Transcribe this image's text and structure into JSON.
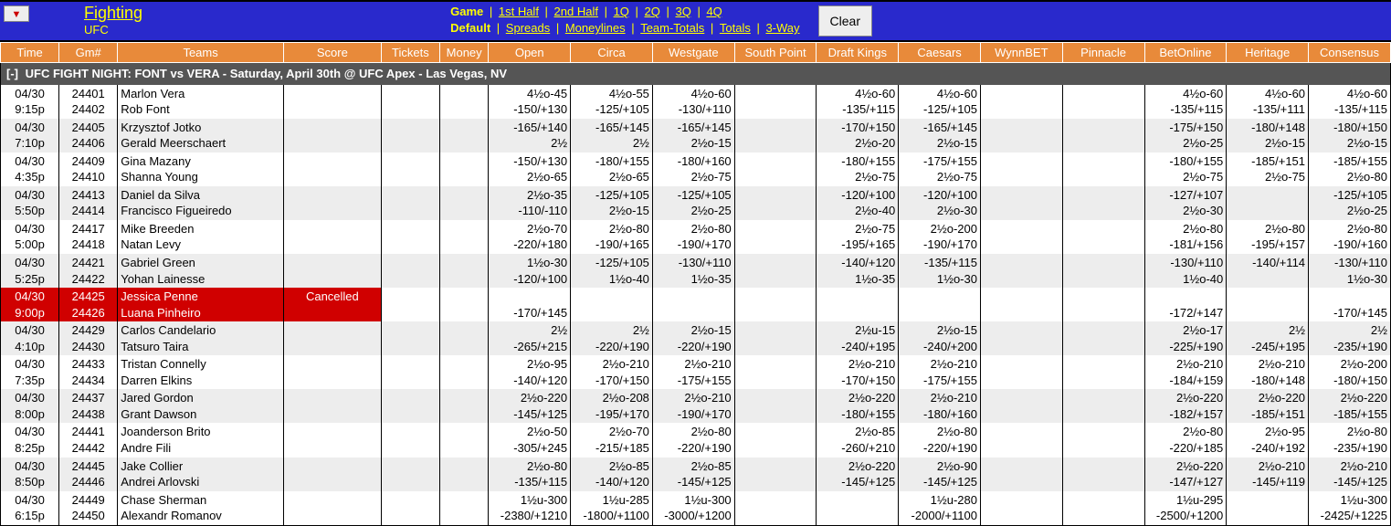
{
  "nav": {
    "category": "Fighting",
    "subcategory": "UFC",
    "game_label": "Game",
    "game_links": [
      "1st Half",
      "2nd Half",
      "1Q",
      "2Q",
      "3Q",
      "4Q"
    ],
    "default_label": "Default",
    "default_links": [
      "Spreads",
      "Moneylines",
      "Team-Totals",
      "Totals",
      "3-Way"
    ],
    "clear": "Clear",
    "dropdown_glyph": "▼"
  },
  "columns": [
    "Time",
    "Gm#",
    "Teams",
    "Score",
    "Tickets",
    "Money",
    "Open",
    "Circa",
    "Westgate",
    "South Point",
    "Draft Kings",
    "Caesars",
    "WynnBET",
    "Pinnacle",
    "BetOnline",
    "Heritage",
    "Consensus"
  ],
  "event": {
    "toggle": "[-]",
    "title": "UFC FIGHT NIGHT: FONT vs VERA - Saturday, April 30th @ UFC Apex - Las Vegas, NV"
  },
  "rows": [
    {
      "time": [
        "04/30",
        "9:15p"
      ],
      "gm": [
        "24401",
        "24402"
      ],
      "teams": [
        "Marlon Vera",
        "Rob Font"
      ],
      "score": "",
      "cancelled": false,
      "odds": {
        "Open": [
          "4½o-45",
          "-150/+130"
        ],
        "Circa": [
          "4½o-55",
          "-125/+105"
        ],
        "Westgate": [
          "4½o-60",
          "-130/+110"
        ],
        "South Point": [
          "",
          ""
        ],
        "Draft Kings": [
          "4½o-60",
          "-135/+115"
        ],
        "Caesars": [
          "4½o-60",
          "-125/+105"
        ],
        "WynnBET": [
          "",
          ""
        ],
        "Pinnacle": [
          "",
          ""
        ],
        "BetOnline": [
          "4½o-60",
          "-135/+115"
        ],
        "Heritage": [
          "4½o-60",
          "-135/+111"
        ],
        "Consensus": [
          "4½o-60",
          "-135/+115"
        ]
      }
    },
    {
      "time": [
        "04/30",
        "7:10p"
      ],
      "gm": [
        "24405",
        "24406"
      ],
      "teams": [
        "Krzysztof Jotko",
        "Gerald Meerschaert"
      ],
      "score": "",
      "cancelled": false,
      "odds": {
        "Open": [
          "-165/+140",
          "2½"
        ],
        "Circa": [
          "-165/+145",
          "2½"
        ],
        "Westgate": [
          "-165/+145",
          "2½o-15"
        ],
        "South Point": [
          "",
          ""
        ],
        "Draft Kings": [
          "-170/+150",
          "2½o-20"
        ],
        "Caesars": [
          "-165/+145",
          "2½o-15"
        ],
        "WynnBET": [
          "",
          ""
        ],
        "Pinnacle": [
          "",
          ""
        ],
        "BetOnline": [
          "-175/+150",
          "2½o-25"
        ],
        "Heritage": [
          "-180/+148",
          "2½o-15"
        ],
        "Consensus": [
          "-180/+150",
          "2½o-15"
        ]
      }
    },
    {
      "time": [
        "04/30",
        "4:35p"
      ],
      "gm": [
        "24409",
        "24410"
      ],
      "teams": [
        "Gina Mazany",
        "Shanna Young"
      ],
      "score": "",
      "cancelled": false,
      "odds": {
        "Open": [
          "-150/+130",
          "2½o-65"
        ],
        "Circa": [
          "-180/+155",
          "2½o-65"
        ],
        "Westgate": [
          "-180/+160",
          "2½o-75"
        ],
        "South Point": [
          "",
          ""
        ],
        "Draft Kings": [
          "-180/+155",
          "2½o-75"
        ],
        "Caesars": [
          "-175/+155",
          "2½o-75"
        ],
        "WynnBET": [
          "",
          ""
        ],
        "Pinnacle": [
          "",
          ""
        ],
        "BetOnline": [
          "-180/+155",
          "2½o-75"
        ],
        "Heritage": [
          "-185/+151",
          "2½o-75"
        ],
        "Consensus": [
          "-185/+155",
          "2½o-80"
        ]
      }
    },
    {
      "time": [
        "04/30",
        "5:50p"
      ],
      "gm": [
        "24413",
        "24414"
      ],
      "teams": [
        "Daniel da Silva",
        "Francisco Figueiredo"
      ],
      "score": "",
      "cancelled": false,
      "odds": {
        "Open": [
          "2½o-35",
          "-110/-110"
        ],
        "Circa": [
          "-125/+105",
          "2½o-15"
        ],
        "Westgate": [
          "-125/+105",
          "2½o-25"
        ],
        "South Point": [
          "",
          ""
        ],
        "Draft Kings": [
          "-120/+100",
          "2½o-40"
        ],
        "Caesars": [
          "-120/+100",
          "2½o-30"
        ],
        "WynnBET": [
          "",
          ""
        ],
        "Pinnacle": [
          "",
          ""
        ],
        "BetOnline": [
          "-127/+107",
          "2½o-30"
        ],
        "Heritage": [
          "",
          ""
        ],
        "Consensus": [
          "-125/+105",
          "2½o-25"
        ]
      }
    },
    {
      "time": [
        "04/30",
        "5:00p"
      ],
      "gm": [
        "24417",
        "24418"
      ],
      "teams": [
        "Mike Breeden",
        "Natan Levy"
      ],
      "score": "",
      "cancelled": false,
      "odds": {
        "Open": [
          "2½o-70",
          "-220/+180"
        ],
        "Circa": [
          "2½o-80",
          "-190/+165"
        ],
        "Westgate": [
          "2½o-80",
          "-190/+170"
        ],
        "South Point": [
          "",
          ""
        ],
        "Draft Kings": [
          "2½o-75",
          "-195/+165"
        ],
        "Caesars": [
          "2½o-200",
          "-190/+170"
        ],
        "WynnBET": [
          "",
          ""
        ],
        "Pinnacle": [
          "",
          ""
        ],
        "BetOnline": [
          "2½o-80",
          "-181/+156"
        ],
        "Heritage": [
          "2½o-80",
          "-195/+157"
        ],
        "Consensus": [
          "2½o-80",
          "-190/+160"
        ]
      }
    },
    {
      "time": [
        "04/30",
        "5:25p"
      ],
      "gm": [
        "24421",
        "24422"
      ],
      "teams": [
        "Gabriel Green",
        "Yohan Lainesse"
      ],
      "score": "",
      "cancelled": false,
      "odds": {
        "Open": [
          "1½o-30",
          "-120/+100"
        ],
        "Circa": [
          "-125/+105",
          "1½o-40"
        ],
        "Westgate": [
          "-130/+110",
          "1½o-35"
        ],
        "South Point": [
          "",
          ""
        ],
        "Draft Kings": [
          "-140/+120",
          "1½o-35"
        ],
        "Caesars": [
          "-135/+115",
          "1½o-30"
        ],
        "WynnBET": [
          "",
          ""
        ],
        "Pinnacle": [
          "",
          ""
        ],
        "BetOnline": [
          "-130/+110",
          "1½o-40"
        ],
        "Heritage": [
          "-140/+114",
          ""
        ],
        "Consensus": [
          "-130/+110",
          "1½o-30"
        ]
      }
    },
    {
      "time": [
        "04/30",
        "9:00p"
      ],
      "gm": [
        "24425",
        "24426"
      ],
      "teams": [
        "Jessica Penne",
        "Luana Pinheiro"
      ],
      "score": "Cancelled",
      "cancelled": true,
      "odds": {
        "Open": [
          "",
          "-170/+145"
        ],
        "Circa": [
          "",
          ""
        ],
        "Westgate": [
          "",
          ""
        ],
        "South Point": [
          "",
          ""
        ],
        "Draft Kings": [
          "",
          ""
        ],
        "Caesars": [
          "",
          ""
        ],
        "WynnBET": [
          "",
          ""
        ],
        "Pinnacle": [
          "",
          ""
        ],
        "BetOnline": [
          "",
          "-172/+147"
        ],
        "Heritage": [
          "",
          ""
        ],
        "Consensus": [
          "",
          "-170/+145"
        ]
      }
    },
    {
      "time": [
        "04/30",
        "4:10p"
      ],
      "gm": [
        "24429",
        "24430"
      ],
      "teams": [
        "Carlos Candelario",
        "Tatsuro Taira"
      ],
      "score": "",
      "cancelled": false,
      "odds": {
        "Open": [
          "2½",
          "-265/+215"
        ],
        "Circa": [
          "2½",
          "-220/+190"
        ],
        "Westgate": [
          "2½o-15",
          "-220/+190"
        ],
        "South Point": [
          "",
          ""
        ],
        "Draft Kings": [
          "2½u-15",
          "-240/+195"
        ],
        "Caesars": [
          "2½o-15",
          "-240/+200"
        ],
        "WynnBET": [
          "",
          ""
        ],
        "Pinnacle": [
          "",
          ""
        ],
        "BetOnline": [
          "2½o-17",
          "-225/+190"
        ],
        "Heritage": [
          "2½",
          "-245/+195"
        ],
        "Consensus": [
          "2½",
          "-235/+190"
        ]
      }
    },
    {
      "time": [
        "04/30",
        "7:35p"
      ],
      "gm": [
        "24433",
        "24434"
      ],
      "teams": [
        "Tristan Connelly",
        "Darren Elkins"
      ],
      "score": "",
      "cancelled": false,
      "odds": {
        "Open": [
          "2½o-95",
          "-140/+120"
        ],
        "Circa": [
          "2½o-210",
          "-170/+150"
        ],
        "Westgate": [
          "2½o-210",
          "-175/+155"
        ],
        "South Point": [
          "",
          ""
        ],
        "Draft Kings": [
          "2½o-210",
          "-170/+150"
        ],
        "Caesars": [
          "2½o-210",
          "-175/+155"
        ],
        "WynnBET": [
          "",
          ""
        ],
        "Pinnacle": [
          "",
          ""
        ],
        "BetOnline": [
          "2½o-210",
          "-184/+159"
        ],
        "Heritage": [
          "2½o-210",
          "-180/+148"
        ],
        "Consensus": [
          "2½o-200",
          "-180/+150"
        ]
      }
    },
    {
      "time": [
        "04/30",
        "8:00p"
      ],
      "gm": [
        "24437",
        "24438"
      ],
      "teams": [
        "Jared Gordon",
        "Grant Dawson"
      ],
      "score": "",
      "cancelled": false,
      "odds": {
        "Open": [
          "2½o-220",
          "-145/+125"
        ],
        "Circa": [
          "2½o-208",
          "-195/+170"
        ],
        "Westgate": [
          "2½o-210",
          "-190/+170"
        ],
        "South Point": [
          "",
          ""
        ],
        "Draft Kings": [
          "2½o-220",
          "-180/+155"
        ],
        "Caesars": [
          "2½o-210",
          "-180/+160"
        ],
        "WynnBET": [
          "",
          ""
        ],
        "Pinnacle": [
          "",
          ""
        ],
        "BetOnline": [
          "2½o-220",
          "-182/+157"
        ],
        "Heritage": [
          "2½o-220",
          "-185/+151"
        ],
        "Consensus": [
          "2½o-220",
          "-185/+155"
        ]
      }
    },
    {
      "time": [
        "04/30",
        "8:25p"
      ],
      "gm": [
        "24441",
        "24442"
      ],
      "teams": [
        "Joanderson Brito",
        "Andre Fili"
      ],
      "score": "",
      "cancelled": false,
      "odds": {
        "Open": [
          "2½o-50",
          "-305/+245"
        ],
        "Circa": [
          "2½o-70",
          "-215/+185"
        ],
        "Westgate": [
          "2½o-80",
          "-220/+190"
        ],
        "South Point": [
          "",
          ""
        ],
        "Draft Kings": [
          "2½o-85",
          "-260/+210"
        ],
        "Caesars": [
          "2½o-80",
          "-220/+190"
        ],
        "WynnBET": [
          "",
          ""
        ],
        "Pinnacle": [
          "",
          ""
        ],
        "BetOnline": [
          "2½o-80",
          "-220/+185"
        ],
        "Heritage": [
          "2½o-95",
          "-240/+192"
        ],
        "Consensus": [
          "2½o-80",
          "-235/+190"
        ]
      }
    },
    {
      "time": [
        "04/30",
        "8:50p"
      ],
      "gm": [
        "24445",
        "24446"
      ],
      "teams": [
        "Jake Collier",
        "Andrei Arlovski"
      ],
      "score": "",
      "cancelled": false,
      "odds": {
        "Open": [
          "2½o-80",
          "-135/+115"
        ],
        "Circa": [
          "2½o-85",
          "-140/+120"
        ],
        "Westgate": [
          "2½o-85",
          "-145/+125"
        ],
        "South Point": [
          "",
          ""
        ],
        "Draft Kings": [
          "2½o-220",
          "-145/+125"
        ],
        "Caesars": [
          "2½o-90",
          "-145/+125"
        ],
        "WynnBET": [
          "",
          ""
        ],
        "Pinnacle": [
          "",
          ""
        ],
        "BetOnline": [
          "2½o-220",
          "-147/+127"
        ],
        "Heritage": [
          "2½o-210",
          "-145/+119"
        ],
        "Consensus": [
          "2½o-210",
          "-145/+125"
        ]
      }
    },
    {
      "time": [
        "04/30",
        "6:15p"
      ],
      "gm": [
        "24449",
        "24450"
      ],
      "teams": [
        "Chase Sherman",
        "Alexandr Romanov"
      ],
      "score": "",
      "cancelled": false,
      "odds": {
        "Open": [
          "1½u-300",
          "-2380/+1210"
        ],
        "Circa": [
          "1½u-285",
          "-1800/+1100"
        ],
        "Westgate": [
          "1½u-300",
          "-3000/+1200"
        ],
        "South Point": [
          "",
          ""
        ],
        "Draft Kings": [
          "",
          ""
        ],
        "Caesars": [
          "1½u-280",
          "-2000/+1100"
        ],
        "WynnBET": [
          "",
          ""
        ],
        "Pinnacle": [
          "",
          ""
        ],
        "BetOnline": [
          "1½u-295",
          "-2500/+1200"
        ],
        "Heritage": [
          "",
          ""
        ],
        "Consensus": [
          "1½u-300",
          "-2425/+1225"
        ]
      }
    }
  ],
  "colors": {
    "header_bg": "#2929cc",
    "header_text": "#ffff00",
    "col_header_bg": "#e88a3a",
    "event_bg": "#555555",
    "row_even": "#ededed",
    "row_odd": "#ffffff",
    "cancelled_bg": "#d00000"
  }
}
